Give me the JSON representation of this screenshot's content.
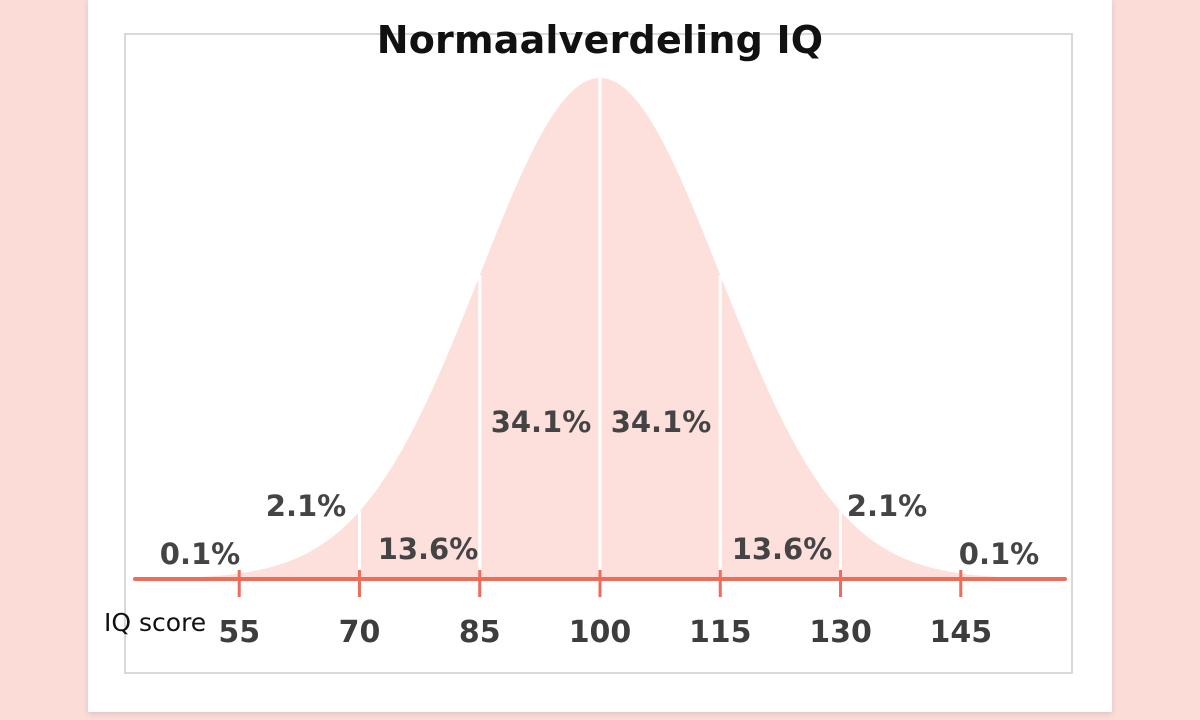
{
  "chart_data": {
    "type": "area",
    "title": "Normaalverdeling IQ",
    "xlabel": "IQ score",
    "ylabel": "",
    "mean": 100,
    "sd": 15,
    "xlim": [
      42,
      158
    ],
    "ticks": [
      55,
      70,
      85,
      100,
      115,
      130,
      145
    ],
    "tick_labels": [
      "55",
      "70",
      "85",
      "100",
      "115",
      "130",
      "145"
    ],
    "dividers": [
      55,
      70,
      85,
      100,
      115,
      130,
      145
    ],
    "segments": [
      {
        "range": [
          42,
          55
        ],
        "label": "0.1%"
      },
      {
        "range": [
          55,
          70
        ],
        "label": "2.1%"
      },
      {
        "range": [
          70,
          85
        ],
        "label": "13.6%"
      },
      {
        "range": [
          85,
          100
        ],
        "label": "34.1%"
      },
      {
        "range": [
          100,
          115
        ],
        "label": "34.1%"
      },
      {
        "range": [
          115,
          130
        ],
        "label": "13.6%"
      },
      {
        "range": [
          130,
          145
        ],
        "label": "2.1%"
      },
      {
        "range": [
          145,
          158
        ],
        "label": "0.1%"
      }
    ],
    "grid": false,
    "legend": "none"
  },
  "colors": {
    "curve_fill": "#fde0db",
    "axis": "#ef6b5a",
    "divider": "#ffffff",
    "label_text": "#444444",
    "background": "#fcdcd7"
  }
}
